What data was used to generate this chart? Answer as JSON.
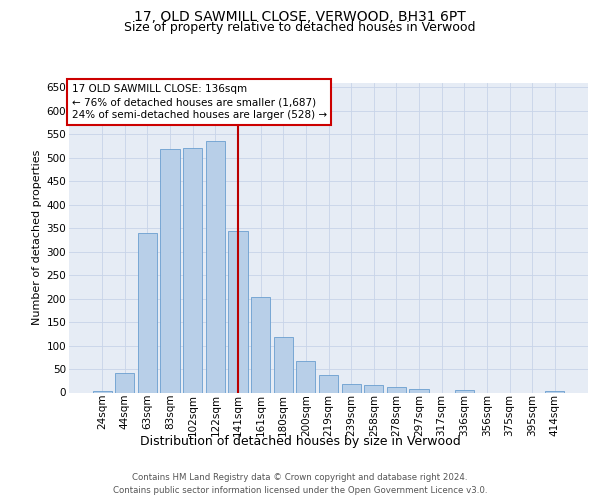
{
  "title": "17, OLD SAWMILL CLOSE, VERWOOD, BH31 6PT",
  "subtitle": "Size of property relative to detached houses in Verwood",
  "xlabel": "Distribution of detached houses by size in Verwood",
  "ylabel": "Number of detached properties",
  "categories": [
    "24sqm",
    "44sqm",
    "63sqm",
    "83sqm",
    "102sqm",
    "122sqm",
    "141sqm",
    "161sqm",
    "180sqm",
    "200sqm",
    "219sqm",
    "239sqm",
    "258sqm",
    "278sqm",
    "297sqm",
    "317sqm",
    "336sqm",
    "356sqm",
    "375sqm",
    "395sqm",
    "414sqm"
  ],
  "values": [
    4,
    42,
    340,
    518,
    520,
    535,
    343,
    203,
    119,
    67,
    37,
    18,
    15,
    12,
    8,
    0,
    5,
    0,
    0,
    0,
    4
  ],
  "bar_facecolor": "#b8cfe8",
  "bar_edgecolor": "#6a9ecf",
  "vline_x": 6.0,
  "vline_color": "#bb0000",
  "ann_line1": "17 OLD SAWMILL CLOSE: 136sqm",
  "ann_line2": "← 76% of detached houses are smaller (1,687)",
  "ann_line3": "24% of semi-detached houses are larger (528) →",
  "ann_facecolor": "#ffffff",
  "ann_edgecolor": "#cc0000",
  "ylim": [
    0,
    660
  ],
  "yticks": [
    0,
    50,
    100,
    150,
    200,
    250,
    300,
    350,
    400,
    450,
    500,
    550,
    600,
    650
  ],
  "grid_color": "#c8d4e8",
  "plot_bg": "#e6ecf5",
  "footer1": "Contains HM Land Registry data © Crown copyright and database right 2024.",
  "footer2": "Contains public sector information licensed under the Open Government Licence v3.0.",
  "title_fontsize": 10,
  "subtitle_fontsize": 9,
  "ylabel_fontsize": 8,
  "xlabel_fontsize": 9,
  "tick_fontsize": 7.5,
  "ann_fontsize": 7.5,
  "footer_fontsize": 6.2
}
